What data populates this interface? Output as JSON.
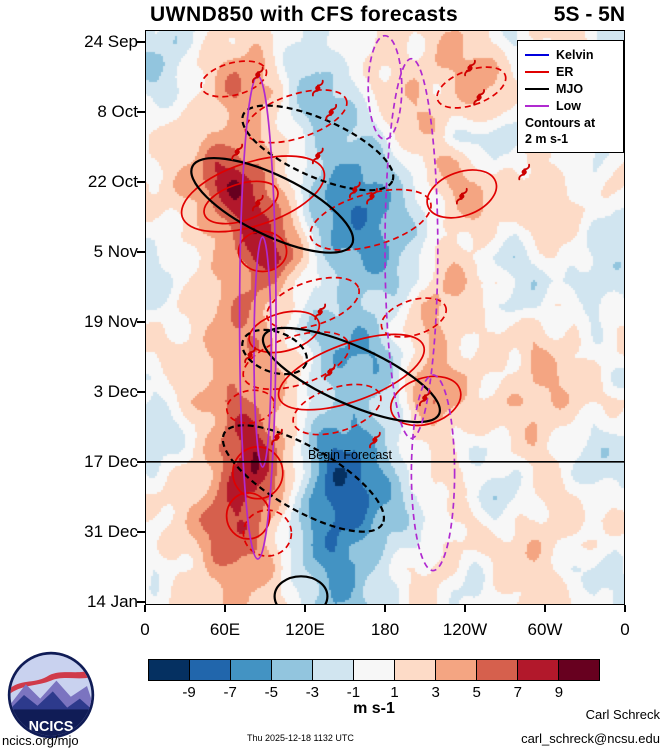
{
  "header": {
    "title": "UWND850 with CFS forecasts",
    "subtitle": "5S - 5N"
  },
  "legend": {
    "items": [
      {
        "label": "Kelvin",
        "color": "#0000dd"
      },
      {
        "label": "ER",
        "color": "#e00000"
      },
      {
        "label": "MJO",
        "color": "#000000"
      },
      {
        "label": "Low",
        "color": "#b02ad0"
      }
    ],
    "note1": "Contours at",
    "note2": "2 m s-1"
  },
  "chart_data": {
    "type": "heatmap",
    "title": "UWND850 with CFS forecasts",
    "subtitle": "5S - 5N",
    "x_axis": "longitude",
    "y_axis": "time (downward)",
    "x_range_deg": [
      0,
      360
    ],
    "x_ticks": [
      "0",
      "60E",
      "120E",
      "180",
      "120W",
      "60W",
      "0"
    ],
    "y_ticks": [
      "24 Sep",
      "8 Oct",
      "22 Oct",
      "5 Nov",
      "19 Nov",
      "3 Dec",
      "17 Dec",
      "31 Dec",
      "14 Jan"
    ],
    "colorbar": {
      "levels": [
        -9,
        -7,
        -5,
        -3,
        -1,
        1,
        3,
        5,
        7,
        9
      ],
      "colors": [
        "#053061",
        "#2166ac",
        "#4393c3",
        "#92c5de",
        "#d1e5f0",
        "#f7f7f7",
        "#fddbc7",
        "#f4a582",
        "#d6604d",
        "#b2182b",
        "#67001f"
      ],
      "label": "m s-1"
    },
    "cyclone_color": "#cc0000",
    "forecast_line": {
      "y": 0.751,
      "label": "Begin Forecast"
    },
    "grid": {
      "nx": 24,
      "ny": 24,
      "values": [
        [
          -2,
          -3,
          -1,
          1,
          2,
          3,
          1,
          -1,
          -2,
          -1,
          1,
          2,
          2,
          1,
          2,
          3,
          2,
          1,
          -1,
          1,
          2,
          1,
          -1,
          -2
        ],
        [
          -3,
          -2,
          1,
          2,
          4,
          4,
          2,
          -2,
          -3,
          -2,
          -1,
          1,
          2,
          2,
          3,
          3,
          4,
          2,
          1,
          1,
          2,
          1,
          -1,
          -2
        ],
        [
          -2,
          -1,
          1,
          3,
          5,
          4,
          2,
          -2,
          -4,
          -3,
          -2,
          1,
          2,
          3,
          2,
          3,
          4,
          3,
          1,
          -1,
          1,
          2,
          1,
          -1
        ],
        [
          -1,
          1,
          2,
          3,
          4,
          3,
          1,
          -2,
          -4,
          -4,
          -2,
          -1,
          2,
          3,
          2,
          2,
          3,
          2,
          -1,
          -2,
          1,
          2,
          1,
          -1
        ],
        [
          1,
          2,
          2,
          4,
          5,
          4,
          2,
          -1,
          -3,
          -4,
          -3,
          -2,
          1,
          2,
          2,
          -1,
          -2,
          -2,
          -1,
          1,
          2,
          1,
          -1,
          -1
        ],
        [
          1,
          2,
          3,
          6,
          7,
          5,
          3,
          1,
          -3,
          -5,
          -5,
          -4,
          -2,
          1,
          3,
          2,
          1,
          -1,
          1,
          2,
          1,
          -1,
          -2,
          1
        ],
        [
          2,
          3,
          4,
          7,
          9,
          7,
          4,
          1,
          -4,
          -6,
          -7,
          -6,
          -3,
          -1,
          2,
          4,
          3,
          1,
          2,
          3,
          2,
          1,
          -1,
          1
        ],
        [
          1,
          2,
          3,
          5,
          7,
          8,
          5,
          2,
          -3,
          -6,
          -7,
          -7,
          -5,
          -2,
          1,
          3,
          4,
          2,
          1,
          2,
          3,
          2,
          1,
          -1
        ],
        [
          -1,
          1,
          2,
          4,
          6,
          8,
          7,
          3,
          -2,
          -5,
          -6,
          -6,
          -5,
          -3,
          -1,
          2,
          2,
          1,
          -1,
          1,
          2,
          1,
          -1,
          -2
        ],
        [
          -2,
          -1,
          1,
          3,
          5,
          8,
          8,
          4,
          -1,
          -4,
          -5,
          -5,
          -4,
          -2,
          1,
          2,
          1,
          -1,
          -2,
          -1,
          1,
          -1,
          -2,
          -2
        ],
        [
          -2,
          -1,
          1,
          2,
          4,
          6,
          5,
          2,
          -2,
          -3,
          -4,
          -4,
          -3,
          -1,
          2,
          3,
          2,
          1,
          -1,
          -2,
          -1,
          -2,
          -3,
          -2
        ],
        [
          -1,
          1,
          2,
          3,
          4,
          5,
          3,
          1,
          -2,
          -3,
          -4,
          -3,
          -1,
          2,
          4,
          3,
          1,
          -1,
          -2,
          -1,
          1,
          1,
          -2,
          -1
        ],
        [
          1,
          1,
          2,
          3,
          5,
          4,
          2,
          -1,
          -3,
          -4,
          -5,
          -4,
          -1,
          3,
          4,
          2,
          1,
          1,
          1,
          2,
          1,
          1,
          -1,
          1
        ],
        [
          1,
          2,
          2,
          4,
          5,
          4,
          3,
          1,
          -2,
          -4,
          -5,
          -5,
          -3,
          1,
          3,
          2,
          2,
          2,
          1,
          3,
          2,
          1,
          1,
          1
        ],
        [
          -1,
          1,
          2,
          3,
          5,
          5,
          3,
          2,
          -3,
          -4,
          -5,
          -4,
          -2,
          2,
          4,
          3,
          2,
          1,
          2,
          3,
          3,
          2,
          1,
          -1
        ],
        [
          -1,
          1,
          2,
          4,
          6,
          5,
          4,
          2,
          -2,
          -4,
          -4,
          -3,
          -1,
          4,
          5,
          3,
          1,
          2,
          3,
          4,
          3,
          2,
          1,
          1
        ],
        [
          -2,
          -1,
          1,
          3,
          6,
          7,
          4,
          1,
          -3,
          -5,
          -6,
          -4,
          -2,
          2,
          3,
          2,
          1,
          1,
          2,
          3,
          2,
          1,
          -1,
          -1
        ],
        [
          -2,
          -1,
          2,
          4,
          7,
          8,
          5,
          1,
          -4,
          -7,
          -7,
          -5,
          -3,
          1,
          2,
          1,
          -1,
          -1,
          1,
          2,
          1,
          -1,
          -2,
          -2
        ],
        [
          -1,
          1,
          2,
          4,
          8,
          9,
          5,
          1,
          -5,
          -8,
          -8,
          -6,
          -3,
          -1,
          1,
          2,
          1,
          -1,
          -1,
          1,
          1,
          -1,
          -2,
          -1
        ],
        [
          1,
          1,
          2,
          5,
          8,
          8,
          4,
          -1,
          -6,
          -9,
          -8,
          -6,
          -4,
          -2,
          1,
          1,
          -1,
          -2,
          -1,
          1,
          2,
          1,
          -1,
          1
        ],
        [
          1,
          2,
          3,
          6,
          7,
          6,
          3,
          -2,
          -6,
          -8,
          -8,
          -5,
          -3,
          -1,
          -1,
          1,
          1,
          -1,
          1,
          2,
          2,
          1,
          1,
          1
        ],
        [
          1,
          2,
          3,
          5,
          6,
          5,
          2,
          -2,
          -5,
          -7,
          -6,
          -4,
          -2,
          -1,
          1,
          2,
          1,
          1,
          2,
          3,
          2,
          1,
          1,
          -1
        ],
        [
          -1,
          1,
          2,
          4,
          5,
          4,
          2,
          -1,
          -4,
          -6,
          -5,
          -3,
          -1,
          1,
          2,
          1,
          -1,
          1,
          2,
          2,
          1,
          -1,
          -1,
          -1
        ],
        [
          -1,
          1,
          2,
          3,
          4,
          3,
          1,
          -1,
          -3,
          -5,
          -4,
          -2,
          -1,
          1,
          1,
          -1,
          -1,
          1,
          1,
          2,
          1,
          1,
          -1,
          -1
        ]
      ]
    },
    "contours": [
      {
        "type": "ER",
        "style": "dashed",
        "cx": 0.185,
        "cy": 0.085,
        "rx": 0.07,
        "ry": 0.028,
        "rot": -15
      },
      {
        "type": "ER",
        "style": "dashed",
        "cx": 0.315,
        "cy": 0.15,
        "rx": 0.11,
        "ry": 0.038,
        "rot": -18
      },
      {
        "type": "ER",
        "style": "dashed",
        "cx": 0.68,
        "cy": 0.1,
        "rx": 0.075,
        "ry": 0.03,
        "rot": -20
      },
      {
        "type": "ER",
        "style": "solid",
        "cx": 0.225,
        "cy": 0.285,
        "rx": 0.155,
        "ry": 0.055,
        "rot": -18
      },
      {
        "type": "ER",
        "style": "solid",
        "cx": 0.2,
        "cy": 0.3,
        "rx": 0.08,
        "ry": 0.032,
        "rot": -18
      },
      {
        "type": "ER",
        "style": "solid",
        "cx": 0.245,
        "cy": 0.385,
        "rx": 0.05,
        "ry": 0.035,
        "rot": 0
      },
      {
        "type": "ER",
        "style": "solid",
        "cx": 0.66,
        "cy": 0.285,
        "rx": 0.075,
        "ry": 0.038,
        "rot": -20
      },
      {
        "type": "ER",
        "style": "dashed",
        "cx": 0.47,
        "cy": 0.33,
        "rx": 0.13,
        "ry": 0.045,
        "rot": -16
      },
      {
        "type": "ER",
        "style": "dashed",
        "cx": 0.35,
        "cy": 0.475,
        "rx": 0.1,
        "ry": 0.038,
        "rot": -18
      },
      {
        "type": "ER",
        "style": "solid",
        "cx": 0.29,
        "cy": 0.525,
        "rx": 0.075,
        "ry": 0.033,
        "rot": -15
      },
      {
        "type": "ER",
        "style": "dashed",
        "cx": 0.315,
        "cy": 0.575,
        "rx": 0.115,
        "ry": 0.042,
        "rot": -18
      },
      {
        "type": "ER",
        "style": "solid",
        "cx": 0.43,
        "cy": 0.595,
        "rx": 0.16,
        "ry": 0.05,
        "rot": -20
      },
      {
        "type": "ER",
        "style": "dashed",
        "cx": 0.4,
        "cy": 0.66,
        "rx": 0.095,
        "ry": 0.038,
        "rot": -18
      },
      {
        "type": "ER",
        "style": "dashed",
        "cx": 0.22,
        "cy": 0.655,
        "rx": 0.05,
        "ry": 0.028,
        "rot": -10
      },
      {
        "type": "ER",
        "style": "solid",
        "cx": 0.585,
        "cy": 0.645,
        "rx": 0.075,
        "ry": 0.04,
        "rot": -18
      },
      {
        "type": "ER",
        "style": "solid",
        "cx": 0.235,
        "cy": 0.77,
        "rx": 0.052,
        "ry": 0.045,
        "rot": 0
      },
      {
        "type": "ER",
        "style": "solid",
        "cx": 0.215,
        "cy": 0.845,
        "rx": 0.045,
        "ry": 0.04,
        "rot": 0
      },
      {
        "type": "ER",
        "style": "dashed",
        "cx": 0.255,
        "cy": 0.875,
        "rx": 0.05,
        "ry": 0.04,
        "rot": 0
      },
      {
        "type": "ER",
        "style": "dashed",
        "cx": 0.56,
        "cy": 0.5,
        "rx": 0.07,
        "ry": 0.03,
        "rot": -18
      },
      {
        "type": "MJO",
        "style": "dashed",
        "cx": 0.36,
        "cy": 0.205,
        "rx": 0.17,
        "ry": 0.05,
        "rot": 24
      },
      {
        "type": "MJO",
        "style": "solid",
        "cx": 0.265,
        "cy": 0.305,
        "rx": 0.185,
        "ry": 0.052,
        "rot": 26
      },
      {
        "type": "MJO",
        "style": "solid",
        "cx": 0.43,
        "cy": 0.6,
        "rx": 0.2,
        "ry": 0.05,
        "rot": 24
      },
      {
        "type": "MJO",
        "style": "dashed",
        "cx": 0.27,
        "cy": 0.56,
        "rx": 0.07,
        "ry": 0.035,
        "rot": 20
      },
      {
        "type": "MJO",
        "style": "dashed",
        "cx": 0.33,
        "cy": 0.78,
        "rx": 0.19,
        "ry": 0.055,
        "rot": 30
      },
      {
        "type": "MJO",
        "style": "solid",
        "cx": 0.325,
        "cy": 0.985,
        "rx": 0.055,
        "ry": 0.035,
        "rot": 0
      },
      {
        "type": "Low",
        "style": "solid",
        "cx": 0.235,
        "cy": 0.5,
        "rx": 0.038,
        "ry": 0.42,
        "rot": 0
      },
      {
        "type": "Low",
        "style": "solid",
        "cx": 0.245,
        "cy": 0.56,
        "rx": 0.018,
        "ry": 0.2,
        "rot": 0
      },
      {
        "type": "Low",
        "style": "dashed",
        "cx": 0.555,
        "cy": 0.38,
        "rx": 0.055,
        "ry": 0.33,
        "rot": 0
      },
      {
        "type": "Low",
        "style": "dashed",
        "cx": 0.6,
        "cy": 0.77,
        "rx": 0.045,
        "ry": 0.17,
        "rot": 0
      },
      {
        "type": "Low",
        "style": "dashed",
        "cx": 0.5,
        "cy": 0.1,
        "rx": 0.035,
        "ry": 0.09,
        "rot": 0
      }
    ],
    "cyclones": [
      {
        "x": 0.235,
        "y": 0.078
      },
      {
        "x": 0.36,
        "y": 0.101
      },
      {
        "x": 0.388,
        "y": 0.143
      },
      {
        "x": 0.677,
        "y": 0.066
      },
      {
        "x": 0.696,
        "y": 0.117
      },
      {
        "x": 0.79,
        "y": 0.247
      },
      {
        "x": 0.192,
        "y": 0.212
      },
      {
        "x": 0.36,
        "y": 0.219
      },
      {
        "x": 0.437,
        "y": 0.278
      },
      {
        "x": 0.473,
        "y": 0.289
      },
      {
        "x": 0.66,
        "y": 0.289
      },
      {
        "x": 0.235,
        "y": 0.301
      },
      {
        "x": 0.365,
        "y": 0.49
      },
      {
        "x": 0.219,
        "y": 0.565
      },
      {
        "x": 0.385,
        "y": 0.595
      },
      {
        "x": 0.583,
        "y": 0.64
      },
      {
        "x": 0.275,
        "y": 0.708
      },
      {
        "x": 0.479,
        "y": 0.713
      }
    ]
  },
  "footer": {
    "site": "ncics.org/mjo",
    "timestamp": "Thu 2025-12-18 1132 UTC",
    "author": "Carl Schreck",
    "email": "carl_schreck@ncsu.edu",
    "logo_text": "NCICS"
  }
}
